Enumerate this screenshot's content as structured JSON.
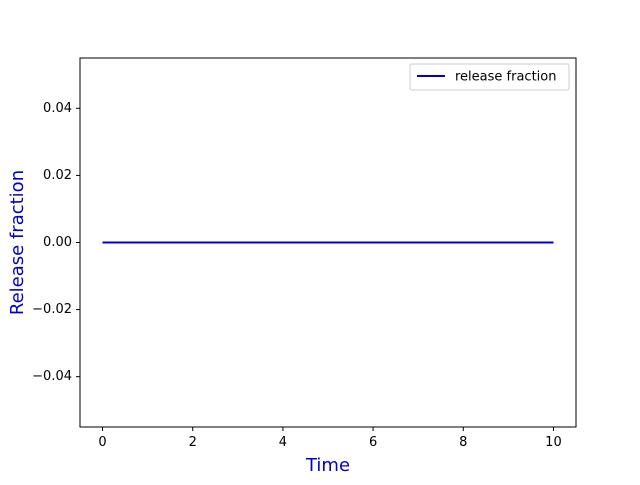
{
  "chart_data": {
    "type": "line",
    "title": "",
    "xlabel": "Time",
    "ylabel": "Release fraction",
    "xlim": [
      -0.5,
      10.5
    ],
    "ylim": [
      -0.055,
      0.055
    ],
    "xticks": [
      0,
      2,
      4,
      6,
      8,
      10
    ],
    "xtick_labels": [
      "0",
      "2",
      "4",
      "6",
      "8",
      "10"
    ],
    "yticks": [
      -0.04,
      -0.02,
      0.0,
      0.02,
      0.04
    ],
    "ytick_labels": [
      "−0.04",
      "−0.02",
      "0.00",
      "0.02",
      "0.04"
    ],
    "grid": false,
    "legend_position": "top-right",
    "series": [
      {
        "name": "release fraction",
        "color": "#0000cc",
        "x": [
          0,
          10
        ],
        "y": [
          0.0,
          0.0
        ]
      }
    ],
    "label_color": "#0000cc"
  }
}
